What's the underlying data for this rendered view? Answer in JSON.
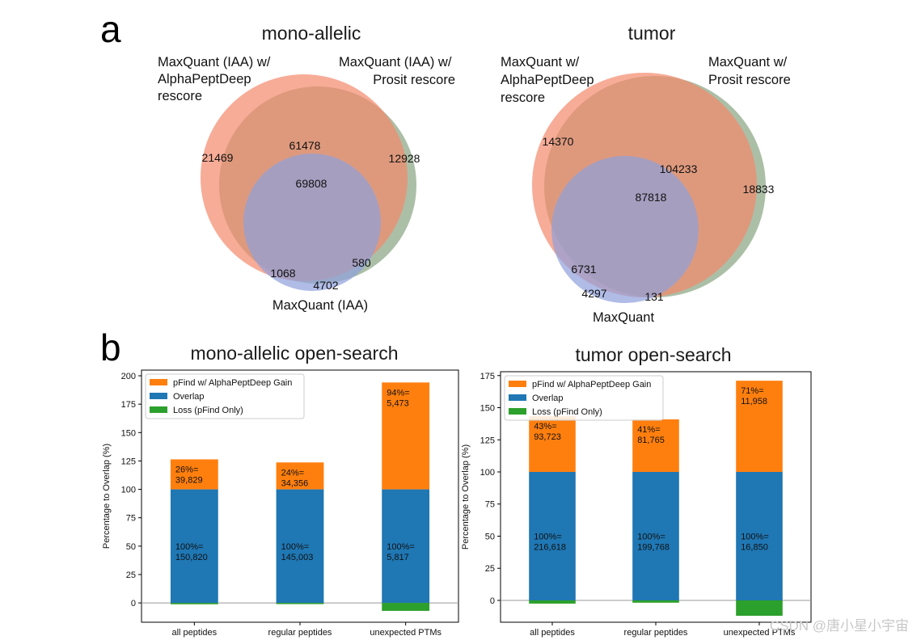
{
  "panel_a": {
    "letter": "a",
    "venns": [
      {
        "title": "mono-allelic",
        "set_labels": {
          "alphapeptdeep": [
            "MaxQuant (IAA) w/",
            "AlphaPeptDeep",
            "rescore"
          ],
          "prosit": [
            "MaxQuant (IAA) w/",
            "Prosit rescore"
          ],
          "maxquant": [
            "MaxQuant (IAA)"
          ]
        },
        "regions": {
          "alphapeptdeep_only": "21469",
          "alphapeptdeep_and_prosit": "61478",
          "prosit_only": "12928",
          "all_three": "69808",
          "alphapeptdeep_and_maxquant": "1068",
          "prosit_and_maxquant": "580",
          "maxquant_only": "4702"
        }
      },
      {
        "title": "tumor",
        "set_labels": {
          "alphapeptdeep": [
            "MaxQuant w/",
            "AlphaPeptDeep",
            "rescore"
          ],
          "prosit": [
            "MaxQuant w/",
            "Prosit rescore"
          ],
          "maxquant": [
            "MaxQuant"
          ]
        },
        "regions": {
          "alphapeptdeep_only": "14370",
          "alphapeptdeep_and_prosit": "104233",
          "prosit_only": "18833",
          "all_three": "87818",
          "alphapeptdeep_and_maxquant": "6731",
          "prosit_and_maxquant": "131",
          "maxquant_only": "4297"
        }
      }
    ]
  },
  "panel_b": {
    "letter": "b"
  },
  "colors": {
    "gain": "#ff7f0e",
    "overlap": "#1f77b4",
    "loss": "#2ca02c",
    "venn_alphapeptdeep": "#f4896b",
    "venn_prosit": "#8faa8a",
    "venn_maxquant": "#8f9fdc"
  },
  "chart_data": [
    {
      "type": "bar",
      "stacked": true,
      "title": "mono-allelic open-search",
      "ylabel": "Percentage to Overlap (%)",
      "xlabel": "",
      "ylim": [
        -17,
        205
      ],
      "yticks": [
        0,
        25,
        50,
        75,
        100,
        125,
        150,
        175,
        200
      ],
      "categories": [
        "all peptides",
        "regular peptides",
        "unexpected PTMs"
      ],
      "legend": [
        "pFind w/ AlphaPeptDeep Gain",
        "Overlap",
        "Loss (pFind Only)"
      ],
      "legend_position": "top-left",
      "series": [
        {
          "name": "pFind w/ AlphaPeptDeep Gain",
          "values": [
            26.4,
            23.7,
            94.1
          ],
          "labels": [
            [
              "26%=",
              "39,829"
            ],
            [
              "24%=",
              "34,356"
            ],
            [
              "94%=",
              "5,473"
            ]
          ]
        },
        {
          "name": "Overlap",
          "values": [
            100,
            100,
            100
          ],
          "labels": [
            [
              "100%=",
              "150,820"
            ],
            [
              "100%=",
              "145,003"
            ],
            [
              "100%=",
              "5,817"
            ]
          ]
        },
        {
          "name": "Loss (pFind Only)",
          "values": [
            -1.2,
            -1.0,
            -7.0
          ]
        }
      ]
    },
    {
      "type": "bar",
      "stacked": true,
      "title": "tumor open-search",
      "ylabel": "Percentage to Overlap (%)",
      "xlabel": "",
      "ylim": [
        -17,
        178
      ],
      "yticks": [
        0,
        25,
        50,
        75,
        100,
        125,
        150,
        175
      ],
      "categories": [
        "all peptides",
        "regular peptides",
        "unexpected PTMs"
      ],
      "legend": [
        "pFind w/ AlphaPeptDeep Gain",
        "Overlap",
        "Loss (pFind Only)"
      ],
      "legend_position": "top-left",
      "series": [
        {
          "name": "pFind w/ AlphaPeptDeep Gain",
          "values": [
            43.3,
            40.9,
            71.0
          ],
          "labels": [
            [
              "43%=",
              "93,723"
            ],
            [
              "41%=",
              "81,765"
            ],
            [
              "71%=",
              "11,958"
            ]
          ]
        },
        {
          "name": "Overlap",
          "values": [
            100,
            100,
            100
          ],
          "labels": [
            [
              "100%=",
              "216,618"
            ],
            [
              "100%=",
              "199,768"
            ],
            [
              "100%=",
              "16,850"
            ]
          ]
        },
        {
          "name": "Loss (pFind Only)",
          "values": [
            -2.5,
            -1.8,
            -12.0
          ]
        }
      ]
    }
  ],
  "watermark": "CSDN @唐小星小宇宙"
}
